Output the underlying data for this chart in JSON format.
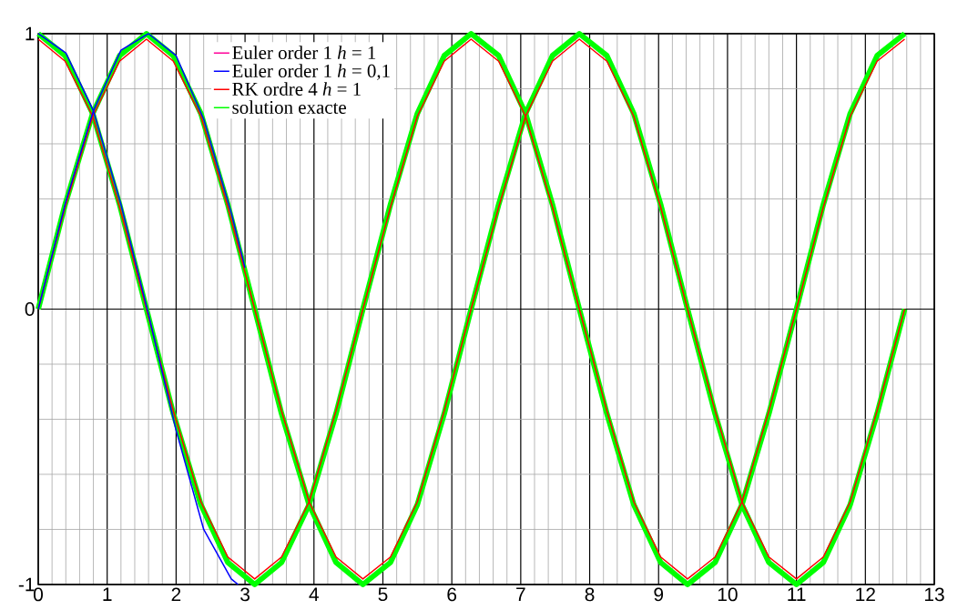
{
  "chart_data": {
    "type": "line",
    "xlim": [
      0,
      13
    ],
    "ylim": [
      -1,
      1
    ],
    "xticks": [
      0,
      1,
      2,
      3,
      4,
      5,
      6,
      7,
      8,
      9,
      10,
      11,
      12,
      13
    ],
    "yticks": [
      -1,
      0,
      1
    ],
    "grid": true,
    "legend": "top left",
    "line_style": "solid",
    "marker": "none",
    "series": [
      {
        "name": "Euler order 1 *h* = 1",
        "color": "#ff0099",
        "values": [
          null,
          null
        ]
      },
      {
        "name": "Euler order 1 *h* = 0,1",
        "color": "#0000ff",
        "x": [
          0,
          0.4,
          0.8,
          1.2,
          1.6,
          2.0,
          2.4,
          2.8,
          2.9
        ],
        "values": [
          1,
          0.93,
          0.72,
          0.38,
          -0.02,
          -0.44,
          -0.8,
          -0.98,
          -1
        ]
      },
      {
        "color": "#0000ff",
        "x": [
          0,
          0.4,
          0.8,
          1.2,
          1.6,
          2.0,
          2.4,
          2.8,
          3.0
        ],
        "values": [
          0,
          0.39,
          0.72,
          0.94,
          1.0,
          0.92,
          0.69,
          0.35,
          0.15
        ]
      },
      {
        "name": "RK ordre 4 *h* = 1",
        "color": "#ff0000",
        "x": [
          0,
          0.39,
          0.79,
          1.18,
          1.57,
          1.96,
          2.36,
          2.75,
          3.14,
          3.53,
          3.93,
          4.32,
          4.71,
          5.11,
          5.5,
          5.89,
          6.28,
          6.68,
          7.07,
          7.46,
          7.85,
          8.25,
          8.64,
          9.03,
          9.42,
          9.82,
          10.21,
          10.6,
          11.0,
          11.39,
          11.78,
          12.17,
          12.57
        ],
        "values": [
          0.98,
          0.9,
          0.7,
          0.37,
          0,
          -0.37,
          -0.7,
          -0.9,
          -0.98,
          -0.9,
          -0.7,
          -0.37,
          0,
          0.37,
          0.7,
          0.9,
          0.98,
          0.9,
          0.7,
          0.37,
          0,
          -0.37,
          -0.7,
          -0.9,
          -0.98,
          -0.9,
          -0.7,
          -0.37,
          0,
          0.37,
          0.7,
          0.9,
          0.98
        ]
      },
      {
        "color": "#ff0000",
        "x": [
          0,
          0.39,
          0.79,
          1.18,
          1.57,
          1.96,
          2.36,
          2.75,
          3.14,
          3.53,
          3.93,
          4.32,
          4.71,
          5.11,
          5.5,
          5.89,
          6.28,
          6.68,
          7.07,
          7.46,
          7.85,
          8.25,
          8.64,
          9.03,
          9.42,
          9.82,
          10.21,
          10.6,
          11.0,
          11.39,
          11.78,
          12.17,
          12.57
        ],
        "values": [
          0,
          0.37,
          0.7,
          0.9,
          0.98,
          0.9,
          0.7,
          0.37,
          0,
          -0.37,
          -0.7,
          -0.9,
          -0.98,
          -0.9,
          -0.7,
          -0.37,
          0,
          0.37,
          0.7,
          0.9,
          0.98,
          0.9,
          0.7,
          0.37,
          0,
          -0.37,
          -0.7,
          -0.9,
          -0.98,
          -0.9,
          -0.7,
          -0.37,
          0
        ]
      },
      {
        "name": "solution exacte",
        "color": "#00ff00",
        "x": [
          0,
          0.39,
          0.79,
          1.18,
          1.57,
          1.96,
          2.36,
          2.75,
          3.14,
          3.53,
          3.93,
          4.32,
          4.71,
          5.11,
          5.5,
          5.89,
          6.28,
          6.68,
          7.07,
          7.46,
          7.85,
          8.25,
          8.64,
          9.03,
          9.42,
          9.82,
          10.21,
          10.6,
          11.0,
          11.39,
          11.78,
          12.17,
          12.57
        ],
        "values": [
          1,
          0.92,
          0.71,
          0.38,
          0,
          -0.38,
          -0.71,
          -0.92,
          -1,
          -0.92,
          -0.71,
          -0.38,
          0,
          0.38,
          0.71,
          0.92,
          1,
          0.92,
          0.71,
          0.38,
          0,
          -0.38,
          -0.71,
          -0.92,
          -1,
          -0.92,
          -0.71,
          -0.38,
          0,
          0.38,
          0.71,
          0.92,
          1
        ]
      },
      {
        "color": "#00ff00",
        "x": [
          0,
          0.39,
          0.79,
          1.18,
          1.57,
          1.96,
          2.36,
          2.75,
          3.14,
          3.53,
          3.93,
          4.32,
          4.71,
          5.11,
          5.5,
          5.89,
          6.28,
          6.68,
          7.07,
          7.46,
          7.85,
          8.25,
          8.64,
          9.03,
          9.42,
          9.82,
          10.21,
          10.6,
          11.0,
          11.39,
          11.78,
          12.17,
          12.57
        ],
        "values": [
          0,
          0.38,
          0.71,
          0.92,
          1,
          0.92,
          0.71,
          0.38,
          0,
          -0.38,
          -0.71,
          -0.92,
          -1,
          -0.92,
          -0.71,
          -0.38,
          0,
          0.38,
          0.71,
          0.92,
          1,
          0.92,
          0.71,
          0.38,
          0,
          -0.38,
          -0.71,
          -0.92,
          -1,
          -0.92,
          -0.71,
          -0.38,
          0
        ]
      }
    ]
  }
}
